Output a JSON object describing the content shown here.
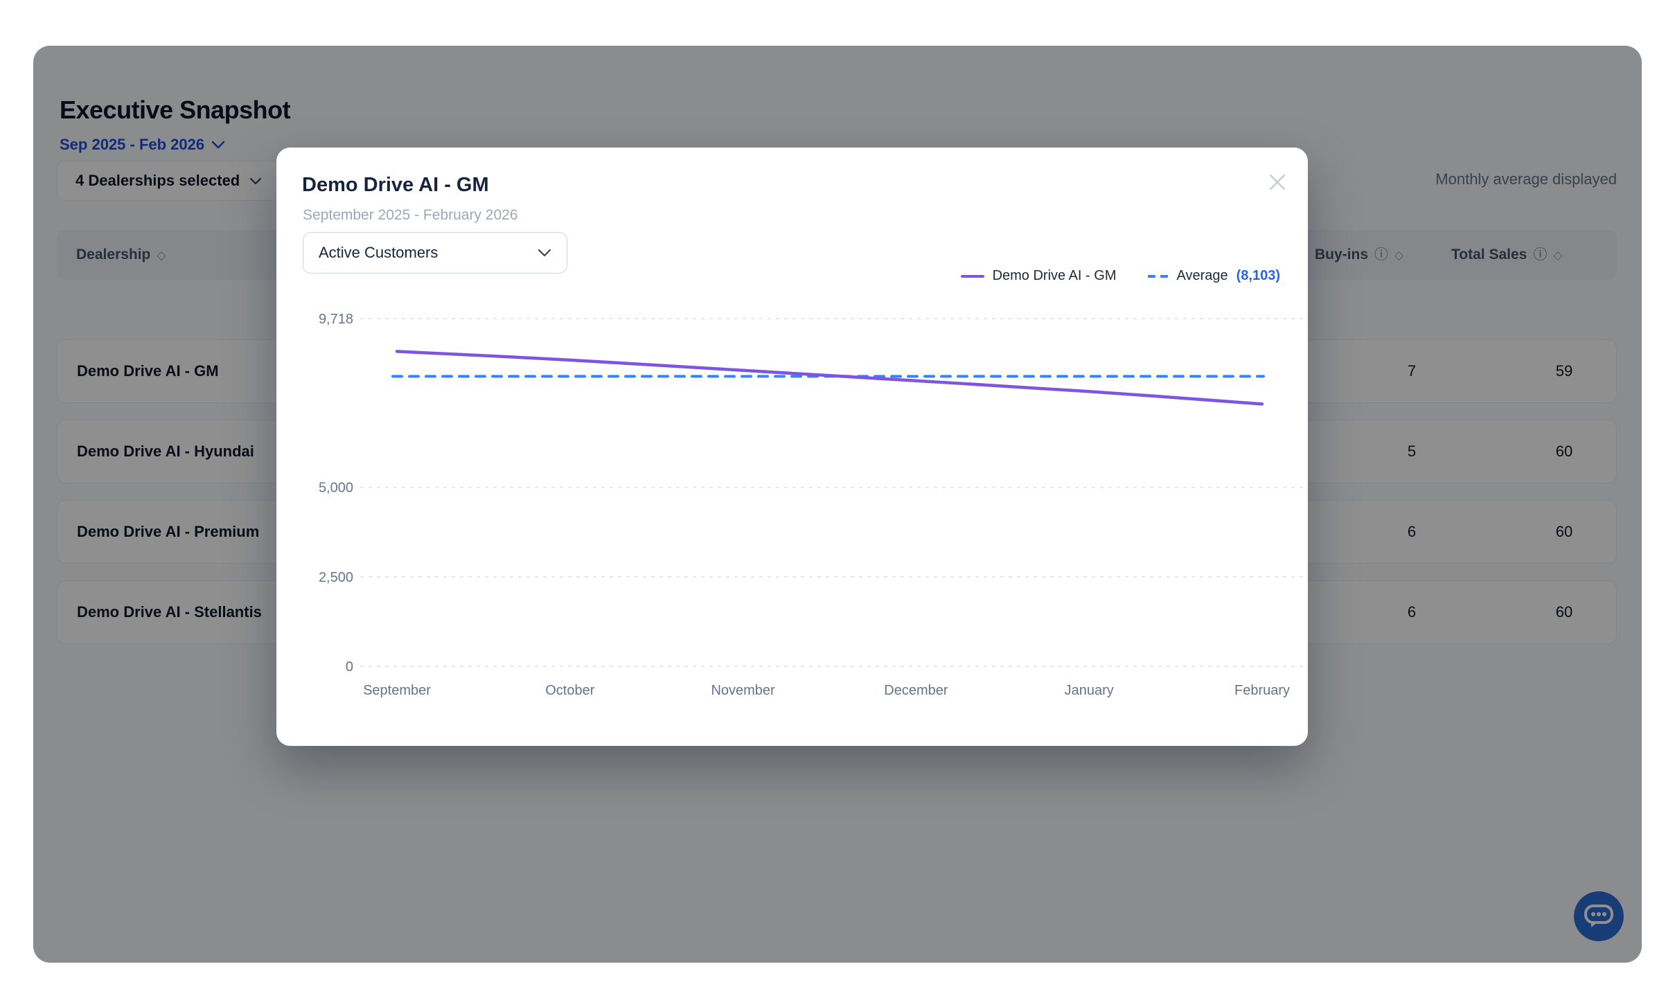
{
  "app": {
    "title": "Executive Snapshot",
    "date_range": "Sep 2025 - Feb 2026",
    "toolbar": {
      "dealership_filter": "4 Dealerships selected",
      "display_note": "Monthly average displayed"
    },
    "table": {
      "columns": {
        "dealership": "Dealership",
        "buy_ins": "Buy-ins",
        "total_sales": "Total Sales"
      },
      "info_icon": "ⓘ",
      "sort_icon": "◇",
      "rows": [
        {
          "name": "Demo Drive AI - GM",
          "buy_ins": "7",
          "total_sales": "59"
        },
        {
          "name": "Demo Drive AI - Hyundai",
          "buy_ins": "5",
          "total_sales": "60"
        },
        {
          "name": "Demo Drive AI - Premium",
          "buy_ins": "6",
          "total_sales": "60"
        },
        {
          "name": "Demo Drive AI - Stellantis",
          "buy_ins": "6",
          "total_sales": "60"
        }
      ]
    }
  },
  "modal": {
    "title": "Demo Drive AI - GM",
    "subtitle": "September 2025 - February 2026",
    "metric_selector": {
      "value": "Active Customers"
    },
    "legend": {
      "series_label": "Demo Drive AI - GM",
      "average_label": "Average",
      "average_value": "(8,103)"
    }
  },
  "chart_data": {
    "type": "line",
    "title": "Demo Drive AI - GM — Active Customers",
    "categories": [
      "September",
      "October",
      "November",
      "December",
      "January",
      "February"
    ],
    "series": [
      {
        "name": "Demo Drive AI - GM",
        "color": "#7d55e0",
        "values": [
          8800,
          8560,
          8270,
          7980,
          7680,
          7330
        ]
      }
    ],
    "average": {
      "value": 8103,
      "color": "#3b82f6"
    },
    "yticks": [
      0,
      2500,
      5000,
      9718
    ],
    "ylim": [
      0,
      9718
    ],
    "grid": "horizontal-dashed",
    "legend_position": "top-right",
    "xlabel": "",
    "ylabel": ""
  },
  "colors": {
    "accent_link": "#1d4ed8",
    "series_purple": "#7d55e0",
    "average_blue": "#3b82f6",
    "average_text_blue": "#2563eb"
  }
}
